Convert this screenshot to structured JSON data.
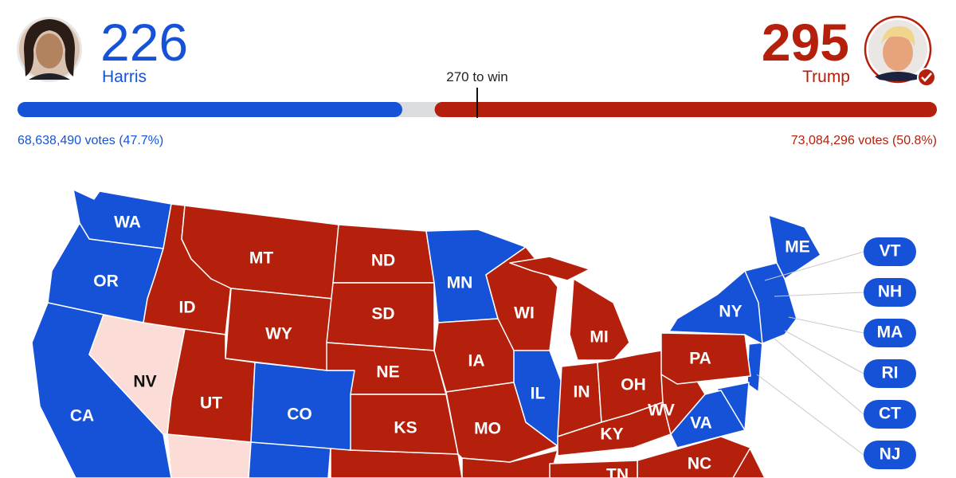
{
  "header": {
    "candidates": [
      {
        "name": "Harris",
        "electoral_votes": 226,
        "votes": "68,638,490 votes (47.7%)",
        "color": "#1652d8"
      },
      {
        "name": "Trump",
        "electoral_votes": 295,
        "votes": "73,084,296 votes (50.8%)",
        "color": "#b5200d"
      }
    ],
    "threshold": {
      "value": 270,
      "label": "270 to win"
    },
    "tossup_color": "#dcdde0"
  },
  "map": {
    "states": [
      {
        "abbr": "WA",
        "color": "#1652d8"
      },
      {
        "abbr": "OR",
        "color": "#1652d8"
      },
      {
        "abbr": "CA",
        "color": "#1652d8"
      },
      {
        "abbr": "NV",
        "color": "#fcdcd6"
      },
      {
        "abbr": "ID",
        "color": "#b5200d"
      },
      {
        "abbr": "MT",
        "color": "#b5200d"
      },
      {
        "abbr": "WY",
        "color": "#b5200d"
      },
      {
        "abbr": "UT",
        "color": "#b5200d"
      },
      {
        "abbr": "CO",
        "color": "#1652d8"
      },
      {
        "abbr": "ND",
        "color": "#b5200d"
      },
      {
        "abbr": "SD",
        "color": "#b5200d"
      },
      {
        "abbr": "NE",
        "color": "#b5200d"
      },
      {
        "abbr": "KS",
        "color": "#b5200d"
      },
      {
        "abbr": "MN",
        "color": "#1652d8"
      },
      {
        "abbr": "IA",
        "color": "#b5200d"
      },
      {
        "abbr": "MO",
        "color": "#b5200d"
      },
      {
        "abbr": "WI",
        "color": "#b5200d"
      },
      {
        "abbr": "IL",
        "color": "#1652d8"
      },
      {
        "abbr": "MI",
        "color": "#b5200d"
      },
      {
        "abbr": "IN",
        "color": "#b5200d"
      },
      {
        "abbr": "OH",
        "color": "#b5200d"
      },
      {
        "abbr": "KY",
        "color": "#b5200d"
      },
      {
        "abbr": "WV",
        "color": "#b5200d"
      },
      {
        "abbr": "PA",
        "color": "#b5200d"
      },
      {
        "abbr": "VA",
        "color": "#1652d8"
      },
      {
        "abbr": "NY",
        "color": "#1652d8"
      },
      {
        "abbr": "ME",
        "color": "#1652d8"
      },
      {
        "abbr": "NC",
        "color": "#b5200d"
      },
      {
        "abbr": "TN",
        "color": "#b5200d"
      }
    ],
    "callouts": [
      {
        "abbr": "VT",
        "color": "#1652d8"
      },
      {
        "abbr": "NH",
        "color": "#1652d8"
      },
      {
        "abbr": "MA",
        "color": "#1652d8"
      },
      {
        "abbr": "RI",
        "color": "#1652d8"
      },
      {
        "abbr": "CT",
        "color": "#1652d8"
      },
      {
        "abbr": "NJ",
        "color": "#1652d8"
      }
    ]
  }
}
